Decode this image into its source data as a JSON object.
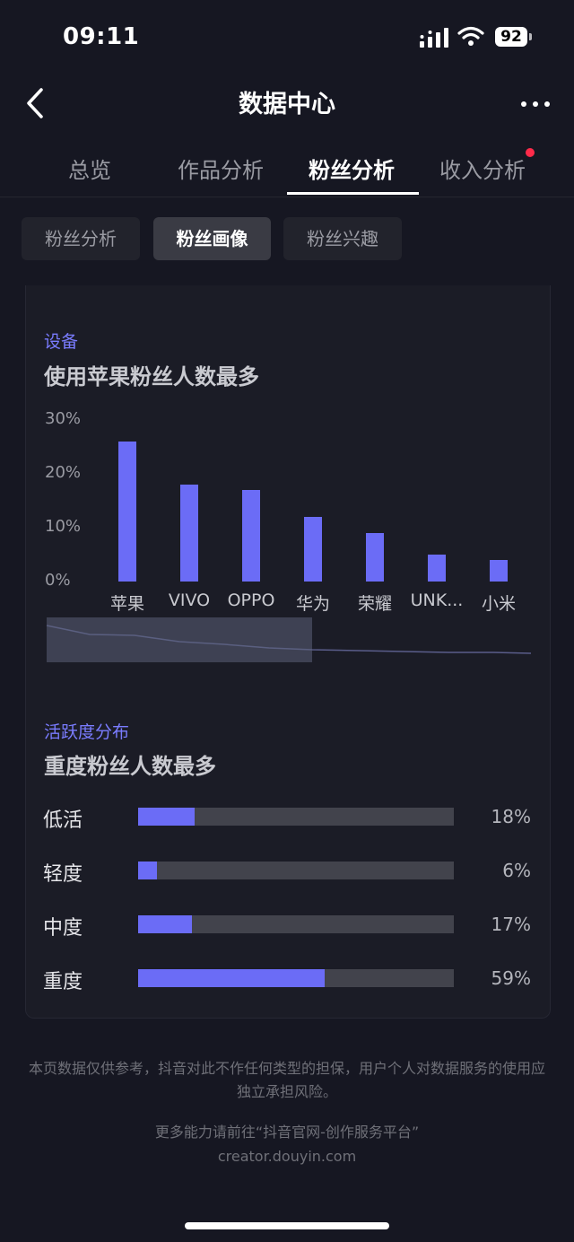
{
  "status": {
    "time": "09:11",
    "battery": "92"
  },
  "nav": {
    "title": "数据中心"
  },
  "tabs": [
    "总览",
    "作品分析",
    "粉丝分析",
    "收入分析"
  ],
  "subtabs": [
    "粉丝分析",
    "粉丝画像",
    "粉丝兴趣"
  ],
  "device_section": {
    "label": "设备",
    "title": "使用苹果粉丝人数最多"
  },
  "chart_data": {
    "type": "bar",
    "categories": [
      "苹果",
      "VIVO",
      "OPPO",
      "华为",
      "荣耀",
      "UNK...",
      "小米"
    ],
    "values": [
      26,
      18,
      17,
      12,
      9,
      5,
      4
    ],
    "yticks": [
      "30%",
      "20%",
      "10%",
      "0%"
    ],
    "ylim": [
      0,
      30
    ],
    "bar_color": "#6b6cf6"
  },
  "activity_section": {
    "label": "活跃度分布",
    "title": "重度粉丝人数最多",
    "items": [
      {
        "label": "低活",
        "percent": 18,
        "text": "18%"
      },
      {
        "label": "轻度",
        "percent": 6,
        "text": "6%"
      },
      {
        "label": "中度",
        "percent": 17,
        "text": "17%"
      },
      {
        "label": "重度",
        "percent": 59,
        "text": "59%"
      }
    ]
  },
  "footer": {
    "disclaimer": "本页数据仅供参考，抖音对此不作任何类型的担保，用户个人对数据服务的使用应独立承担风险。",
    "more": "更多能力请前往“抖音官网-创作服务平台”",
    "site": "creator.douyin.com"
  },
  "colors": {
    "accent": "#6b6cf6",
    "label": "#7a7cff",
    "background": "#161722"
  }
}
